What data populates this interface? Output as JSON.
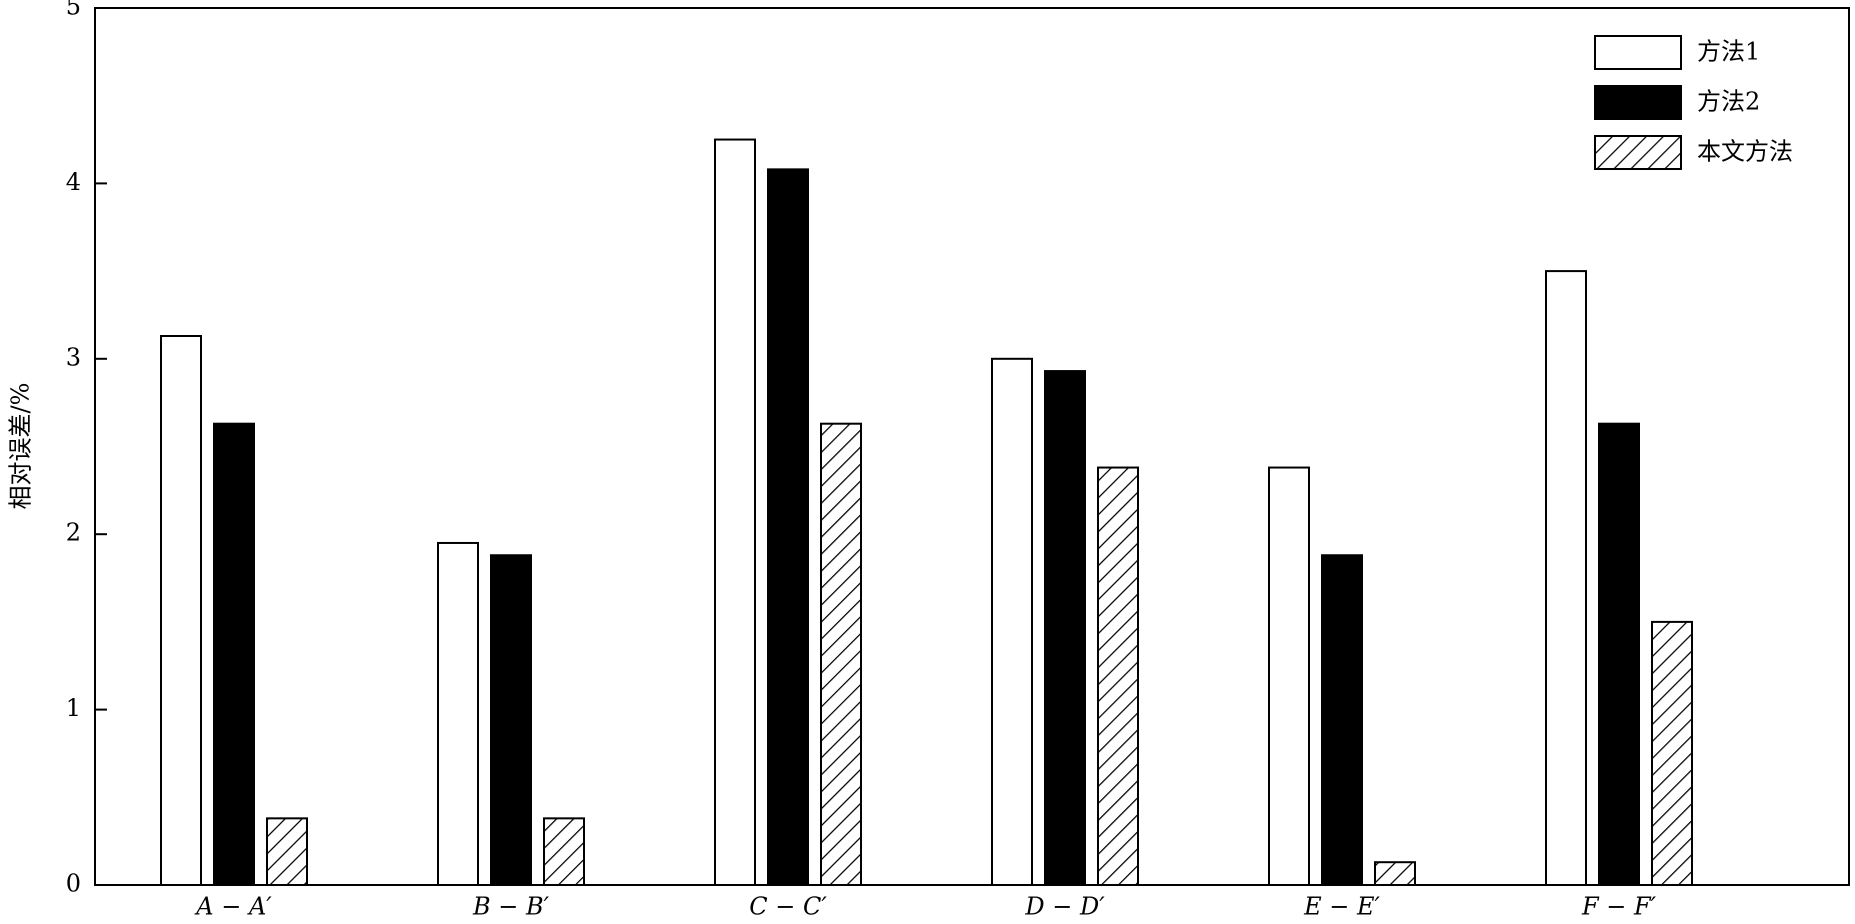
{
  "chart_data": {
    "type": "bar",
    "y_label": "相对误差/%",
    "categories": [
      "A − A′",
      "B − B′",
      "C − C′",
      "D − D′",
      "E − E′",
      "F − F′"
    ],
    "series": [
      {
        "name": "方法1",
        "color": "#ffffff",
        "values": [
          3.13,
          1.95,
          4.25,
          3.0,
          2.38,
          3.5
        ]
      },
      {
        "name": "方法2",
        "color": "#000000",
        "values": [
          2.63,
          1.88,
          4.08,
          2.93,
          1.88,
          2.63
        ]
      },
      {
        "name": "本文方法",
        "color": "#ffffff",
        "hatch": true,
        "values": [
          0.38,
          0.38,
          2.63,
          2.38,
          0.13,
          1.5
        ]
      }
    ],
    "ylim": [
      0,
      5
    ],
    "yticks": [
      0,
      1,
      2,
      3,
      4,
      5
    ],
    "legend": "top-right"
  }
}
